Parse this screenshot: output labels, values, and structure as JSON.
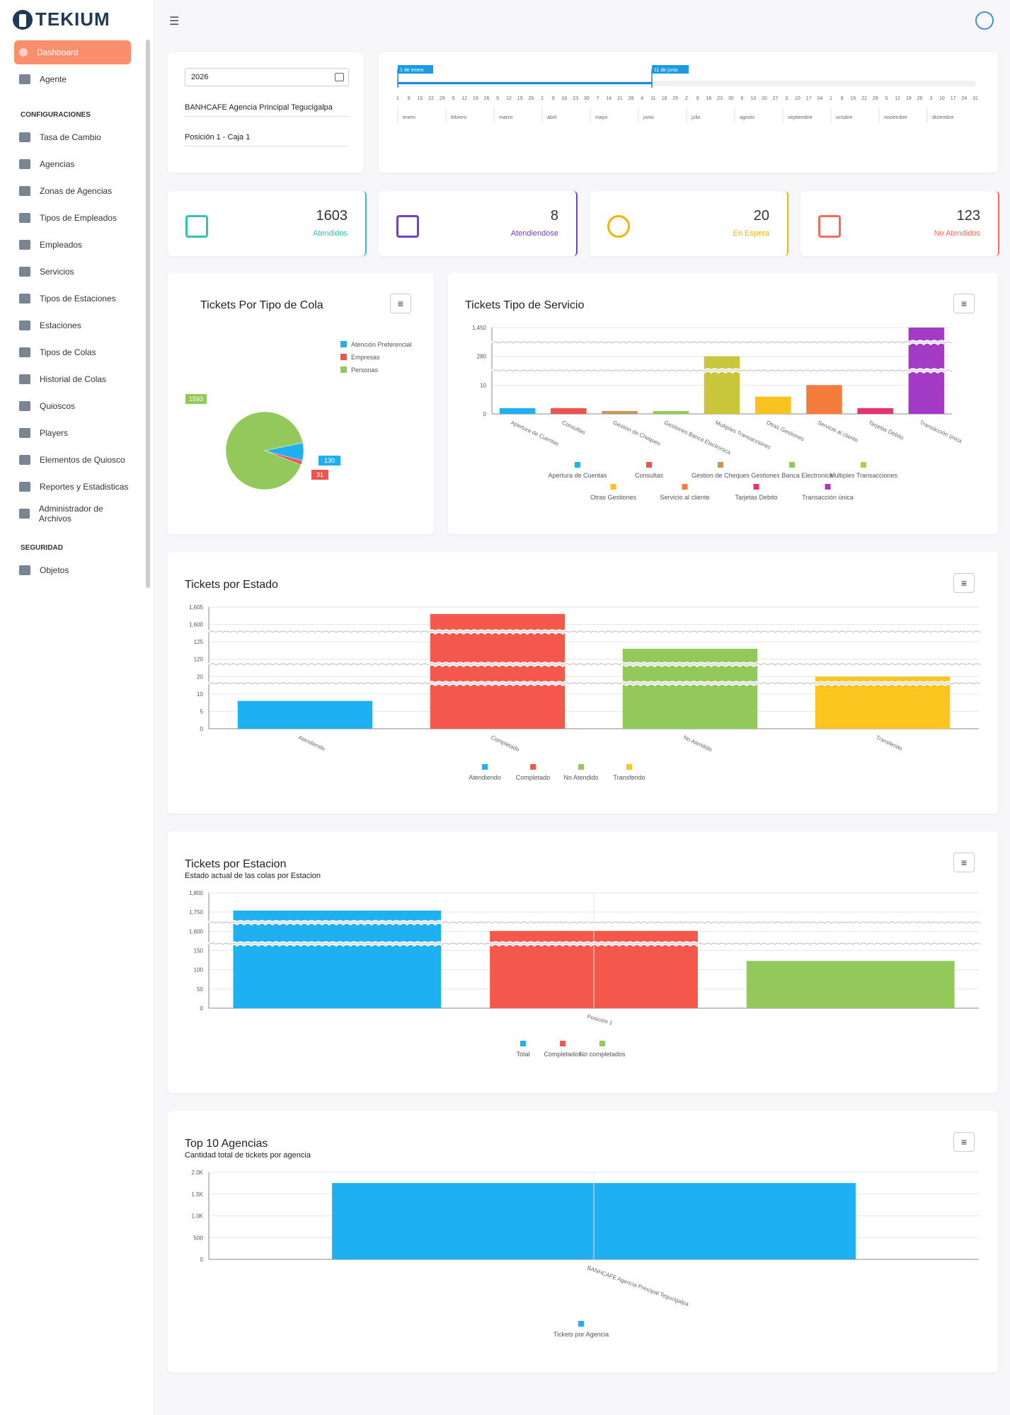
{
  "app": {
    "logo": "TEKIUM"
  },
  "sidebar": {
    "items_top": [
      {
        "label": "Dashboard",
        "icon": "dashboard-icon",
        "active": true
      },
      {
        "label": "Agente",
        "icon": "agent-icon"
      }
    ],
    "section_config": "CONFIGURACIONES",
    "items_config": [
      {
        "label": "Tasa de Cambio",
        "icon": "exchange-icon"
      },
      {
        "label": "Agencias",
        "icon": "bank-icon"
      },
      {
        "label": "Zonas de Agencias",
        "icon": "zones-icon"
      },
      {
        "label": "Tipos de Empleados",
        "icon": "employee-types-icon"
      },
      {
        "label": "Empleados",
        "icon": "employees-icon"
      },
      {
        "label": "Servicios",
        "icon": "services-icon"
      },
      {
        "label": "Tipos de Estaciones",
        "icon": "station-types-icon"
      },
      {
        "label": "Estaciones",
        "icon": "stations-icon"
      },
      {
        "label": "Tipos de Colas",
        "icon": "queue-types-icon"
      },
      {
        "label": "Historial de Colas",
        "icon": "queue-history-icon"
      },
      {
        "label": "Quioscos",
        "icon": "kiosk-icon"
      },
      {
        "label": "Players",
        "icon": "players-icon"
      },
      {
        "label": "Elementos de Quiosco",
        "icon": "kiosk-elements-icon"
      },
      {
        "label": "Reportes y Estadisticas",
        "icon": "reports-icon"
      },
      {
        "label": "Administrador de Archivos",
        "icon": "files-icon"
      }
    ],
    "section_security": "SEGURIDAD",
    "items_security": [
      {
        "label": "Objetos",
        "icon": "objects-icon"
      }
    ]
  },
  "filters": {
    "year": "2026",
    "agency": "BANHCAFE Agencia Principal Tegucigalpa",
    "position": "Posición 1 - Caja 1"
  },
  "timeline": {
    "start_label": "1 de enero",
    "end_label": "11 de junio",
    "days": [
      "1",
      "8",
      "15",
      "22",
      "29",
      "5",
      "12",
      "19",
      "26",
      "5",
      "12",
      "19",
      "26",
      "2",
      "9",
      "16",
      "23",
      "30",
      "7",
      "14",
      "21",
      "28",
      "4",
      "11",
      "18",
      "25",
      "2",
      "9",
      "16",
      "23",
      "30",
      "6",
      "13",
      "20",
      "27",
      "3",
      "10",
      "17",
      "24",
      "1",
      "8",
      "15",
      "22",
      "29",
      "5",
      "12",
      "19",
      "26",
      "3",
      "10",
      "17",
      "24",
      "31"
    ],
    "months": [
      "enero",
      "febrero",
      "marzo",
      "abril",
      "mayo",
      "junio",
      "julio",
      "agosto",
      "septiembre",
      "octubre",
      "noviembre",
      "diciembre"
    ]
  },
  "stats": [
    {
      "value": "1603",
      "label": "Atendidos",
      "color": "#2ec4b6",
      "icon": "abacus-icon"
    },
    {
      "value": "8",
      "label": "Atendiendose",
      "color": "#6f42c1",
      "icon": "copy-icon"
    },
    {
      "value": "20",
      "label": "En Espera",
      "color": "#f4b400",
      "icon": "clock-icon"
    },
    {
      "value": "123",
      "label": "No Atendidos",
      "color": "#f26b5b",
      "icon": "stop-icon"
    }
  ],
  "menu_symbol": "≡",
  "chart_data": [
    {
      "type": "pie",
      "title": "Tickets Por Tipo de Cola",
      "categories": [
        "Atención Preferencial",
        "Empresas",
        "Personas"
      ],
      "values": [
        130,
        31,
        1593
      ],
      "colors": [
        "#1eb0f0",
        "#ef5350",
        "#93c95a"
      ],
      "legend": "top-right"
    },
    {
      "type": "bar",
      "title": "Tickets Tipo de Servicio",
      "categories": [
        "Apertura de Cuentas",
        "Consultas",
        "Gestion de Cheques",
        "Gestiones Banca Electronica",
        "Multiples Transacciones",
        "Otras Gestiones",
        "Servicio al cliente",
        "Tarjetas Debito",
        "Transacción única"
      ],
      "values": [
        2,
        2,
        1,
        1,
        280,
        6,
        10,
        2,
        1450
      ],
      "colors": [
        "#1eb0f0",
        "#ef5350",
        "#c4965a",
        "#93c95a",
        "#c9c63b",
        "#f9c21f",
        "#f57c3a",
        "#e8336a",
        "#a43bc6"
      ],
      "yticks": [
        "0",
        "10",
        "280",
        "1,450"
      ],
      "legend": "bottom"
    },
    {
      "type": "bar",
      "title": "Tickets por Estado",
      "categories": [
        "Atendiendo",
        "Completado",
        "No Atendido",
        "Transferido"
      ],
      "values": [
        8,
        1603,
        123,
        20
      ],
      "colors": [
        "#1eb0f0",
        "#f4574c",
        "#93c95a",
        "#fcc41f"
      ],
      "yticks": [
        "0",
        "5",
        "10",
        "20",
        "120",
        "125",
        "1,600",
        "1,605"
      ],
      "legend": "bottom"
    },
    {
      "type": "bar",
      "title": "Tickets por Estacion",
      "subtitle": "Estado actual de las colas por Estacion",
      "categories": [
        "Posición 1"
      ],
      "series": [
        {
          "name": "Total",
          "values": [
            1754
          ]
        },
        {
          "name": "Completados",
          "values": [
            1603
          ]
        },
        {
          "name": "No  completados",
          "values": [
            123
          ]
        }
      ],
      "colors": [
        "#1eb0f0",
        "#f4574c",
        "#93c95a"
      ],
      "yticks": [
        "0",
        "50",
        "100",
        "150",
        "1,600",
        "1,750",
        "1,800"
      ],
      "legend": "bottom"
    },
    {
      "type": "bar",
      "title": "Top 10 Agencias",
      "subtitle": "Cantidad total de tickets por agencia",
      "categories": [
        "BANHCAFE Agencia Principal Tegucigalpa"
      ],
      "series": [
        {
          "name": "Tickets por Agencia",
          "values": [
            1754
          ]
        }
      ],
      "colors": [
        "#1eb0f0"
      ],
      "yticks": [
        "0",
        "500",
        "1.0K",
        "1.5K",
        "2.0K"
      ],
      "ylim": [
        0,
        2000
      ],
      "legend": "bottom"
    }
  ]
}
